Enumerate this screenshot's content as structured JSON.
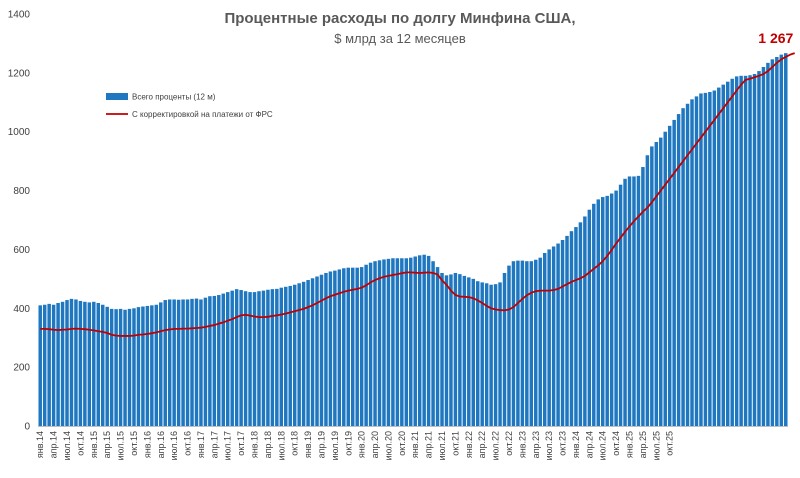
{
  "chart_data": {
    "type": "bar",
    "title": "Процентные расходы по долгу Минфина США,",
    "subtitle": "$ млрд за 12 месяцев",
    "ylim": [
      0,
      1400
    ],
    "yticks": [
      0,
      200,
      400,
      600,
      800,
      1000,
      1200,
      1400
    ],
    "grid": false,
    "legend_position": "upper-left",
    "colors": {
      "bars": "#1f77c0",
      "line": "#c00000",
      "text": "#595959",
      "callout": "#c00000"
    },
    "x_tick_labels": [
      "янв.14",
      "апр.14",
      "июл.14",
      "окт.14",
      "янв.15",
      "апр.15",
      "июл.15",
      "окт.15",
      "янв.16",
      "апр.16",
      "июл.16",
      "окт.16",
      "янв.17",
      "апр.17",
      "июл.17",
      "окт.17",
      "янв.18",
      "апр.18",
      "июл.18",
      "окт.18",
      "янв.19",
      "апр.19",
      "июл.19",
      "окт.19",
      "янв.20",
      "апр.20",
      "июл.20",
      "окт.20",
      "янв.21",
      "апр.21",
      "июл.21",
      "окт.21",
      "янв.22",
      "апр.22",
      "июл.22",
      "окт.22",
      "янв.23",
      "апр.23",
      "июл.23",
      "окт.23",
      "янв.24",
      "апр.24",
      "июл.24",
      "окт.24",
      "янв.25",
      "апр.25",
      "июл.25",
      "окт.25"
    ],
    "series": [
      {
        "name": "Всего проценты (12 м)",
        "kind": "bar",
        "values": [
          410,
          412,
          415,
          412,
          418,
          422,
          428,
          432,
          430,
          425,
          422,
          420,
          422,
          418,
          412,
          405,
          398,
          397,
          398,
          395,
          398,
          400,
          404,
          406,
          408,
          410,
          412,
          420,
          428,
          430,
          430,
          429,
          430,
          430,
          432,
          433,
          430,
          436,
          441,
          442,
          445,
          450,
          455,
          460,
          465,
          462,
          458,
          455,
          455,
          458,
          460,
          463,
          465,
          466,
          470,
          473,
          476,
          480,
          485,
          490,
          496,
          502,
          508,
          514,
          520,
          525,
          528,
          532,
          536,
          538,
          538,
          538,
          540,
          548,
          555,
          560,
          563,
          566,
          568,
          570,
          570,
          570,
          570,
          572,
          576,
          580,
          582,
          578,
          560,
          540,
          520,
          512,
          515,
          520,
          516,
          510,
          505,
          500,
          492,
          488,
          485,
          480,
          482,
          488,
          520,
          545,
          560,
          562,
          562,
          560,
          560,
          565,
          572,
          588,
          600,
          610,
          620,
          632,
          646,
          662,
          676,
          692,
          712,
          735,
          755,
          770,
          778,
          782,
          790,
          800,
          820,
          840,
          848,
          848,
          850,
          880,
          920,
          950,
          965,
          980,
          1000,
          1020,
          1040,
          1060,
          1080,
          1095,
          1110,
          1120,
          1130,
          1132,
          1135,
          1140,
          1150,
          1160,
          1170,
          1180,
          1188,
          1190,
          1190,
          1192,
          1196,
          1206,
          1220,
          1234,
          1246,
          1254,
          1262,
          1267
        ]
      },
      {
        "name": "С корректировкой на платежи от ФРС",
        "kind": "line",
        "values": [
          330,
          330,
          329,
          327,
          326,
          327,
          328,
          330,
          331,
          330,
          329,
          327,
          325,
          322,
          320,
          316,
          310,
          307,
          306,
          306,
          306,
          307,
          310,
          311,
          313,
          315,
          318,
          322,
          326,
          328,
          330,
          330,
          331,
          331,
          332,
          333,
          334,
          337,
          340,
          343,
          348,
          352,
          358,
          363,
          370,
          376,
          378,
          375,
          372,
          370,
          370,
          371,
          374,
          376,
          379,
          382,
          386,
          390,
          394,
          398,
          404,
          410,
          418,
          426,
          434,
          441,
          446,
          451,
          456,
          460,
          463,
          466,
          470,
          478,
          488,
          496,
          502,
          507,
          510,
          513,
          516,
          519,
          522,
          522,
          521,
          520,
          521,
          522,
          520,
          515,
          495,
          480,
          460,
          445,
          440,
          439,
          438,
          434,
          427,
          418,
          408,
          400,
          396,
          394,
          393,
          396,
          404,
          418,
          432,
          444,
          453,
          458,
          460,
          460,
          460,
          462,
          466,
          474,
          482,
          490,
          496,
          502,
          510,
          522,
          534,
          546,
          560,
          578,
          598,
          620,
          640,
          660,
          678,
          696,
          712,
          728,
          742,
          760,
          780,
          800,
          820,
          840,
          860,
          880,
          900,
          920,
          940,
          960,
          980,
          1000,
          1020,
          1040,
          1060,
          1080,
          1100,
          1120,
          1140,
          1160,
          1176,
          1180,
          1185,
          1190,
          1196,
          1206,
          1220,
          1234,
          1246,
          1254,
          1262,
          1267
        ]
      }
    ],
    "callout": {
      "label": "1 267",
      "value": 1267
    }
  }
}
